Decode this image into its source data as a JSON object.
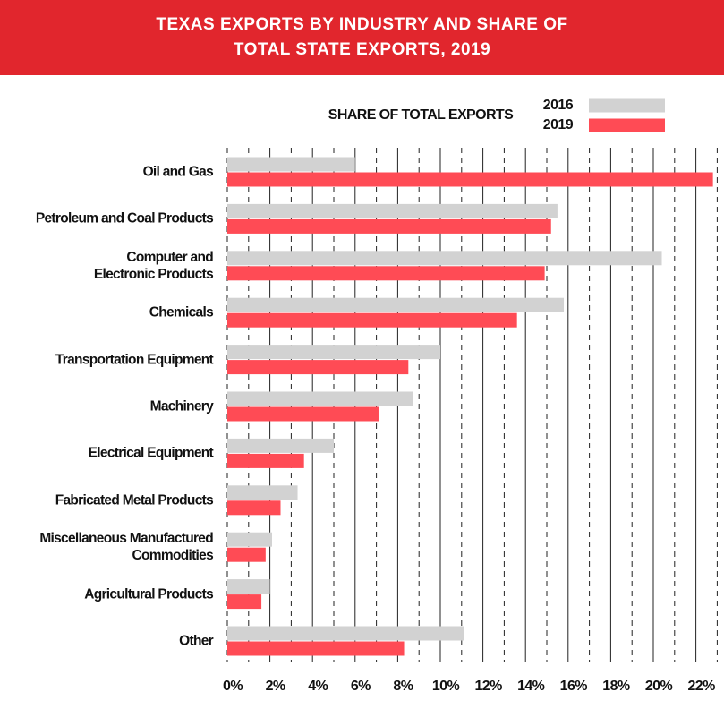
{
  "chart_data": {
    "type": "bar",
    "orientation": "horizontal",
    "title": "TEXAS EXPORTS BY INDUSTRY AND SHARE OF TOTAL STATE EXPORTS, 2019",
    "legend_title": "SHARE OF TOTAL EXPORTS",
    "categories": [
      "Oil and Gas",
      "Petroleum and Coal Products",
      "Computer and\nElectronic Products",
      "Chemicals",
      "Transportation Equipment",
      "Machinery",
      "Electrical Equipment",
      "Fabricated Metal Products",
      "Miscellaneous Manufactured\nCommodities",
      "Agricultural Products",
      "Other"
    ],
    "series": [
      {
        "name": "2016",
        "color": "#d2d2d2",
        "values": [
          6.0,
          15.5,
          20.4,
          15.8,
          10.0,
          8.7,
          5.0,
          3.3,
          2.1,
          2.0,
          11.1
        ]
      },
      {
        "name": "2019",
        "color": "#ff4b55",
        "values": [
          22.8,
          15.2,
          14.9,
          13.6,
          8.5,
          7.1,
          3.6,
          2.5,
          1.8,
          1.6,
          8.3
        ]
      }
    ],
    "xlim": [
      0,
      23
    ],
    "xticks": [
      {
        "value": 0,
        "label": "0%"
      },
      {
        "value": 2,
        "label": "2%"
      },
      {
        "value": 4,
        "label": "4%"
      },
      {
        "value": 6,
        "label": "6%"
      },
      {
        "value": 8,
        "label": "8%"
      },
      {
        "value": 10,
        "label": "10%"
      },
      {
        "value": 12,
        "label": "12%"
      },
      {
        "value": 14,
        "label": "14%"
      },
      {
        "value": 16,
        "label": "16%"
      },
      {
        "value": 18,
        "label": "18%"
      },
      {
        "value": 20,
        "label": "20%"
      },
      {
        "value": 22,
        "label": "22%"
      }
    ],
    "xminorticks": [
      1,
      3,
      5,
      7,
      9,
      11,
      13,
      15,
      17,
      19,
      21,
      23
    ],
    "grid": true
  }
}
